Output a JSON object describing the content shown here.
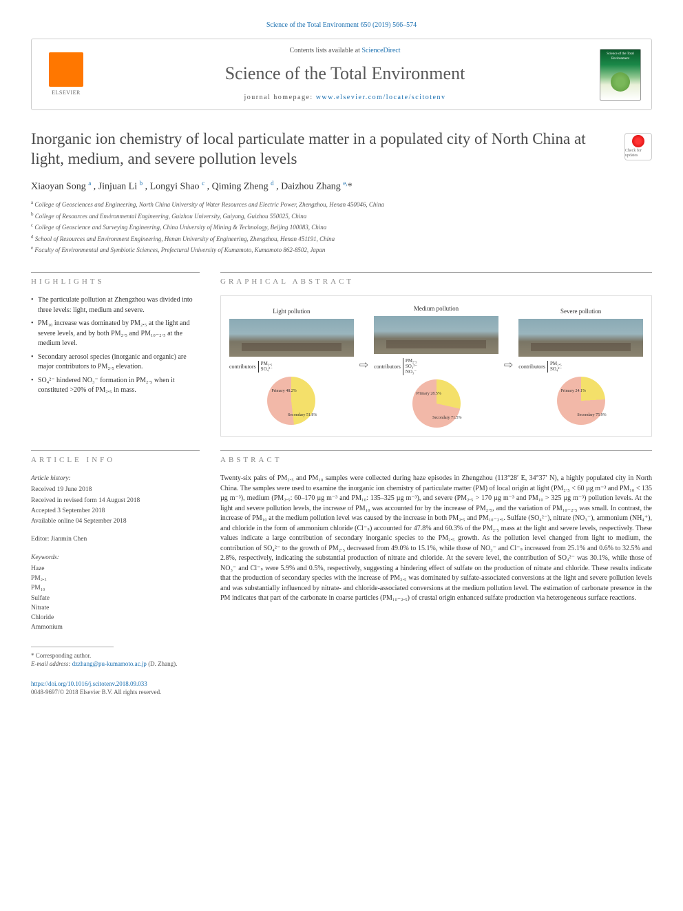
{
  "citation": "Science of the Total Environment 650 (2019) 566–574",
  "header": {
    "contents_prefix": "Contents lists available at ",
    "contents_link": "ScienceDirect",
    "journal": "Science of the Total Environment",
    "homepage_prefix": "journal homepage: ",
    "homepage_url": "www.elsevier.com/locate/scitotenv",
    "publisher_name": "ELSEVIER",
    "cover_text": "Science of the Total Environment"
  },
  "check_badge": "Check for updates",
  "title": "Inorganic ion chemistry of local particulate matter in a populated city of North China at light, medium, and severe pollution levels",
  "authors_html": "Xiaoyan Song <sup>a</sup> , Jinjuan Li <sup>b</sup> , Longyi Shao <sup>c</sup> , Qiming Zheng <sup>d</sup> , Daizhou Zhang <sup>e,</sup>*",
  "affiliations": [
    "a  College of Geosciences and Engineering, North China University of Water Resources and Electric Power, Zhengzhou, Henan 450046, China",
    "b  College of Resources and Environmental Engineering, Guizhou University, Guiyang, Guizhou 550025, China",
    "c  College of Geoscience and Surveying Engineering, China University of Mining & Technology, Beijing 100083, China",
    "d  School of Resources and Environment Engineering, Henan University of Engineering, Zhengzhou, Henan 451191, China",
    "e  Faculty of Environmental and Symbiotic Sciences, Prefectural University of Kumamoto, Kumamoto 862-8502, Japan"
  ],
  "highlights_label": "HIGHLIGHTS",
  "highlights": [
    "The particulate pollution at Zhengzhou was divided into three levels: light, medium and severe.",
    "PM₁₀ increase was dominated by PM₂.₅ at the light and severe levels, and by both PM₂.₅ and PM₁₀₋₂.₅ at the medium level.",
    "Secondary aerosol species (inorganic and organic) are major contributors to PM₂.₅ elevation.",
    "SO₄²⁻ hindered NO₃⁻ formation in PM₂.₅ when it constituted >20% of PM₂.₅ in mass."
  ],
  "graphical_label": "GRAPHICAL ABSTRACT",
  "graphical": {
    "panels": [
      {
        "label": "Light pollution",
        "contributors": [
          "PM₂.₅",
          "SO₄²⁻"
        ],
        "pie": {
          "primary_pct": 48.2,
          "secondary_pct": 51.8,
          "primary_color": "#f4e06a",
          "secondary_color": "#f2b8a8",
          "primary_label": "Primary 48.2%",
          "secondary_label": "Secondary 51.8%"
        }
      },
      {
        "label": "Medium pollution",
        "contributors": [
          "PM₂.₅",
          "SO₄²⁻",
          "NO₃⁻"
        ],
        "pie": {
          "primary_pct": 28.5,
          "secondary_pct": 71.5,
          "primary_color": "#f4e06a",
          "secondary_color": "#f2b8a8",
          "primary_label": "Primary 28.5%",
          "secondary_label": "Secondary 71.5%"
        }
      },
      {
        "label": "Severe pollution",
        "contributors": [
          "PM₂.₅",
          "SO₄²⁻"
        ],
        "pie": {
          "primary_pct": 24.1,
          "secondary_pct": 75.9,
          "primary_color": "#f4e06a",
          "secondary_color": "#f2b8a8",
          "primary_label": "Primary 24.1%",
          "secondary_label": "Secondary 75.9%"
        }
      }
    ],
    "arrow_glyph": "⇨",
    "contributors_label": "contributors"
  },
  "article_info_label": "ARTICLE INFO",
  "article_info": {
    "history_label": "Article history:",
    "history": [
      "Received 19 June 2018",
      "Received in revised form 14 August 2018",
      "Accepted 3 September 2018",
      "Available online 04 September 2018"
    ],
    "editor_label": "Editor: ",
    "editor": "Jianmin Chen",
    "keywords_label": "Keywords:",
    "keywords": [
      "Haze",
      "PM₂.₅",
      "PM₁₀",
      "Sulfate",
      "Nitrate",
      "Chloride",
      "Ammonium"
    ]
  },
  "abstract_label": "ABSTRACT",
  "abstract": "Twenty-six pairs of PM₂.₅ and PM₁₀ samples were collected during haze episodes in Zhengzhou (113°28′ E, 34°37′ N), a highly populated city in North China. The samples were used to examine the inorganic ion chemistry of particulate matter (PM) of local origin at light (PM₂.₅ < 60 µg m⁻³ and PM₁₀ < 135 µg m⁻³), medium (PM₂.₅: 60–170 µg m⁻³ and PM₁₀: 135–325 µg m⁻³), and severe (PM₂.₅ > 170 µg m⁻³ and PM₁₀ > 325 µg m⁻³) pollution levels. At the light and severe pollution levels, the increase of PM₁₀ was accounted for by the increase of PM₂.₅, and the variation of PM₁₀₋₂.₅ was small. In contrast, the increase of PM₁₀ at the medium pollution level was caused by the increase in both PM₂.₅ and PM₁₀₋₂.₅. Sulfate (SO₄²⁻), nitrate (NO₃⁻), ammonium (NH₄⁺), and chloride in the form of ammonium chloride (Cl⁻ₛ) accounted for 47.8% and 60.3% of the PM₂.₅ mass at the light and severe levels, respectively. These values indicate a large contribution of secondary inorganic species to the PM₂.₅ growth. As the pollution level changed from light to medium, the contribution of SO₄²⁻ to the growth of PM₂.₅ decreased from 49.0% to 15.1%, while those of NO₃⁻ and Cl⁻ₛ increased from 25.1% and 0.6% to 32.5% and 2.8%, respectively, indicating the substantial production of nitrate and chloride. At the severe level, the contribution of SO₄²⁻ was 30.1%, while those of NO₃⁻ and Cl⁻ₛ were 5.9% and 0.5%, respectively, suggesting a hindering effect of sulfate on the production of nitrate and chloride. These results indicate that the production of secondary species with the increase of PM₂.₅ was dominated by sulfate-associated conversions at the light and severe pollution levels and was substantially influenced by nitrate- and chloride-associated conversions at the medium pollution level. The estimation of carbonate presence in the PM indicates that part of the carbonate in coarse particles (PM₁₀₋₂.₅) of crustal origin enhanced sulfate production via heterogeneous surface reactions.",
  "corresp": {
    "label": "* Corresponding author.",
    "email_label": "E-mail address: ",
    "email": "dzzhang@pu-kumamoto.ac.jp",
    "email_suffix": " (D. Zhang)."
  },
  "footer": {
    "doi": "https://doi.org/10.1016/j.scitotenv.2018.09.033",
    "copyright": "0048-9697/© 2018 Elsevier B.V. All rights reserved."
  },
  "colors": {
    "link": "#1a6fb0",
    "elsevier_orange": "#ff7700",
    "text": "#333333",
    "muted": "#888888",
    "border": "#cccccc"
  }
}
